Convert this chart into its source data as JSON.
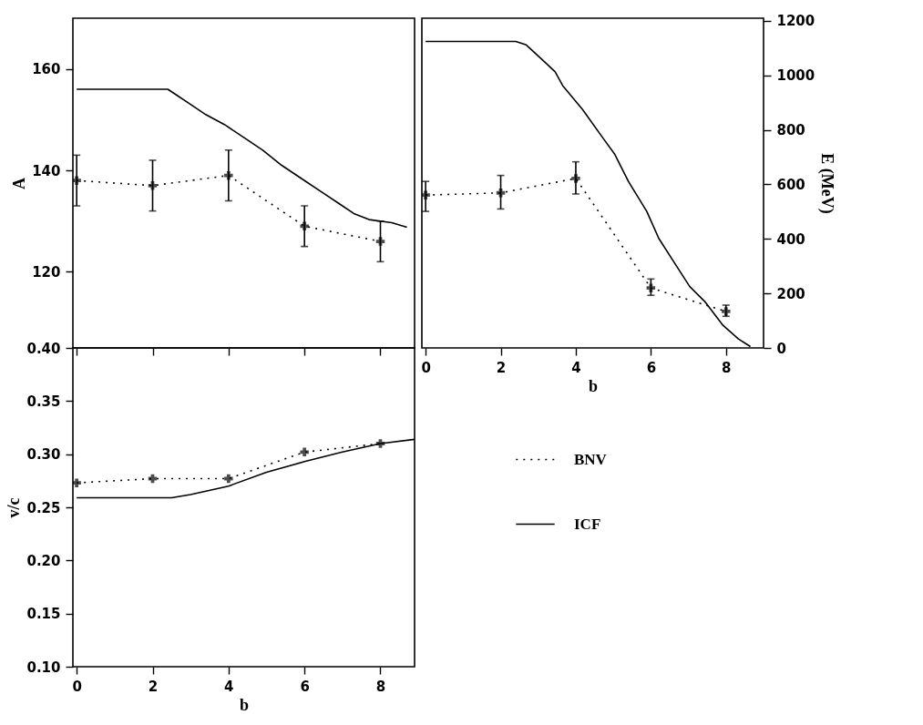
{
  "chart_data": [
    {
      "type": "line",
      "ylabel": "A",
      "xlim": [
        -0.1,
        8.9
      ],
      "xticks": [
        0,
        2,
        4,
        6,
        8
      ],
      "ylim": [
        105,
        170
      ],
      "yticks": [
        120,
        140,
        160
      ],
      "tick_labels": "y",
      "series": [
        {
          "color": "#000000",
          "x": [
            0,
            2,
            4,
            6,
            8
          ],
          "values": [
            138,
            137,
            139,
            129,
            126
          ],
          "errors": [
            [
              133,
              143
            ],
            [
              132,
              142
            ],
            [
              134,
              144
            ],
            [
              125,
              133
            ],
            [
              122,
              130
            ]
          ],
          "marker": "cross",
          "line_style": "dotted"
        },
        {
          "color": "#000000",
          "x": [
            0,
            2.4,
            2.6,
            3.0,
            3.4,
            3.9,
            4.4,
            4.9,
            5.4,
            6.0,
            6.5,
            6.9,
            7.3,
            7.7,
            8.3,
            8.7
          ],
          "values": [
            156,
            156,
            155,
            153,
            151,
            149,
            146.5,
            144,
            141,
            138,
            135.5,
            133.5,
            131.5,
            130.3,
            129.7,
            128.8
          ],
          "marker": "none",
          "line_style": "solid"
        }
      ]
    },
    {
      "type": "line",
      "xlabel": "b",
      "y2label": "E (MeV)",
      "xlim": [
        -0.1,
        9
      ],
      "xticks": [
        0,
        2,
        4,
        6,
        8
      ],
      "y2lim": [
        0,
        1210
      ],
      "y2ticks": [
        0,
        200,
        400,
        600,
        800,
        1000,
        1200
      ],
      "series": [
        {
          "color": "#000000",
          "axis": "y2",
          "x": [
            0,
            2,
            4,
            6,
            8
          ],
          "values": [
            561,
            569,
            622,
            220,
            134
          ],
          "errors": [
            [
              501,
              611
            ],
            [
              510,
              633
            ],
            [
              565,
              683
            ],
            [
              193,
              253
            ],
            [
              116,
              157
            ]
          ],
          "marker": "cross",
          "line_style": "dotted"
        },
        {
          "color": "#000000",
          "axis": "y2",
          "x": [
            0,
            2.4,
            2.68,
            3.2,
            3.45,
            3.65,
            4.18,
            4.75,
            5.04,
            5.4,
            5.89,
            6.21,
            6.62,
            7.03,
            7.43,
            7.92,
            8.33,
            8.65
          ],
          "values": [
            1125,
            1125,
            1112,
            1046,
            1013,
            963,
            875,
            765,
            710,
            611,
            501,
            402,
            314,
            226,
            171,
            83,
            33,
            5
          ],
          "marker": "none",
          "line_style": "solid"
        }
      ]
    },
    {
      "type": "line",
      "xlabel": "b",
      "ylabel": "v/c",
      "xlim": [
        -0.1,
        8.9
      ],
      "xticks": [
        0,
        2,
        4,
        6,
        8
      ],
      "ylim": [
        0.1,
        0.4
      ],
      "yticks": [
        {
          "value": 0.1,
          "label": "0.10"
        },
        0.15,
        {
          "value": 0.2,
          "label": "0.20"
        },
        0.25,
        {
          "value": 0.3,
          "label": "0.30"
        },
        0.35,
        {
          "value": 0.4,
          "label": "0.40"
        }
      ],
      "legend": "right",
      "series": [
        {
          "name": "BNV",
          "color": "#000000",
          "x": [
            0,
            2,
            4,
            6,
            8
          ],
          "values": [
            0.273,
            0.277,
            0.277,
            0.302,
            0.31
          ],
          "marker": "cross",
          "line_style": "dotted"
        },
        {
          "name": "ICF",
          "color": "#000000",
          "x": [
            0,
            2.5,
            3,
            4,
            5,
            6,
            7,
            8,
            8.9
          ],
          "values": [
            0.259,
            0.259,
            0.262,
            0.27,
            0.283,
            0.293,
            0.302,
            0.31,
            0.314
          ],
          "marker": "none",
          "line_style": "solid"
        }
      ]
    }
  ]
}
